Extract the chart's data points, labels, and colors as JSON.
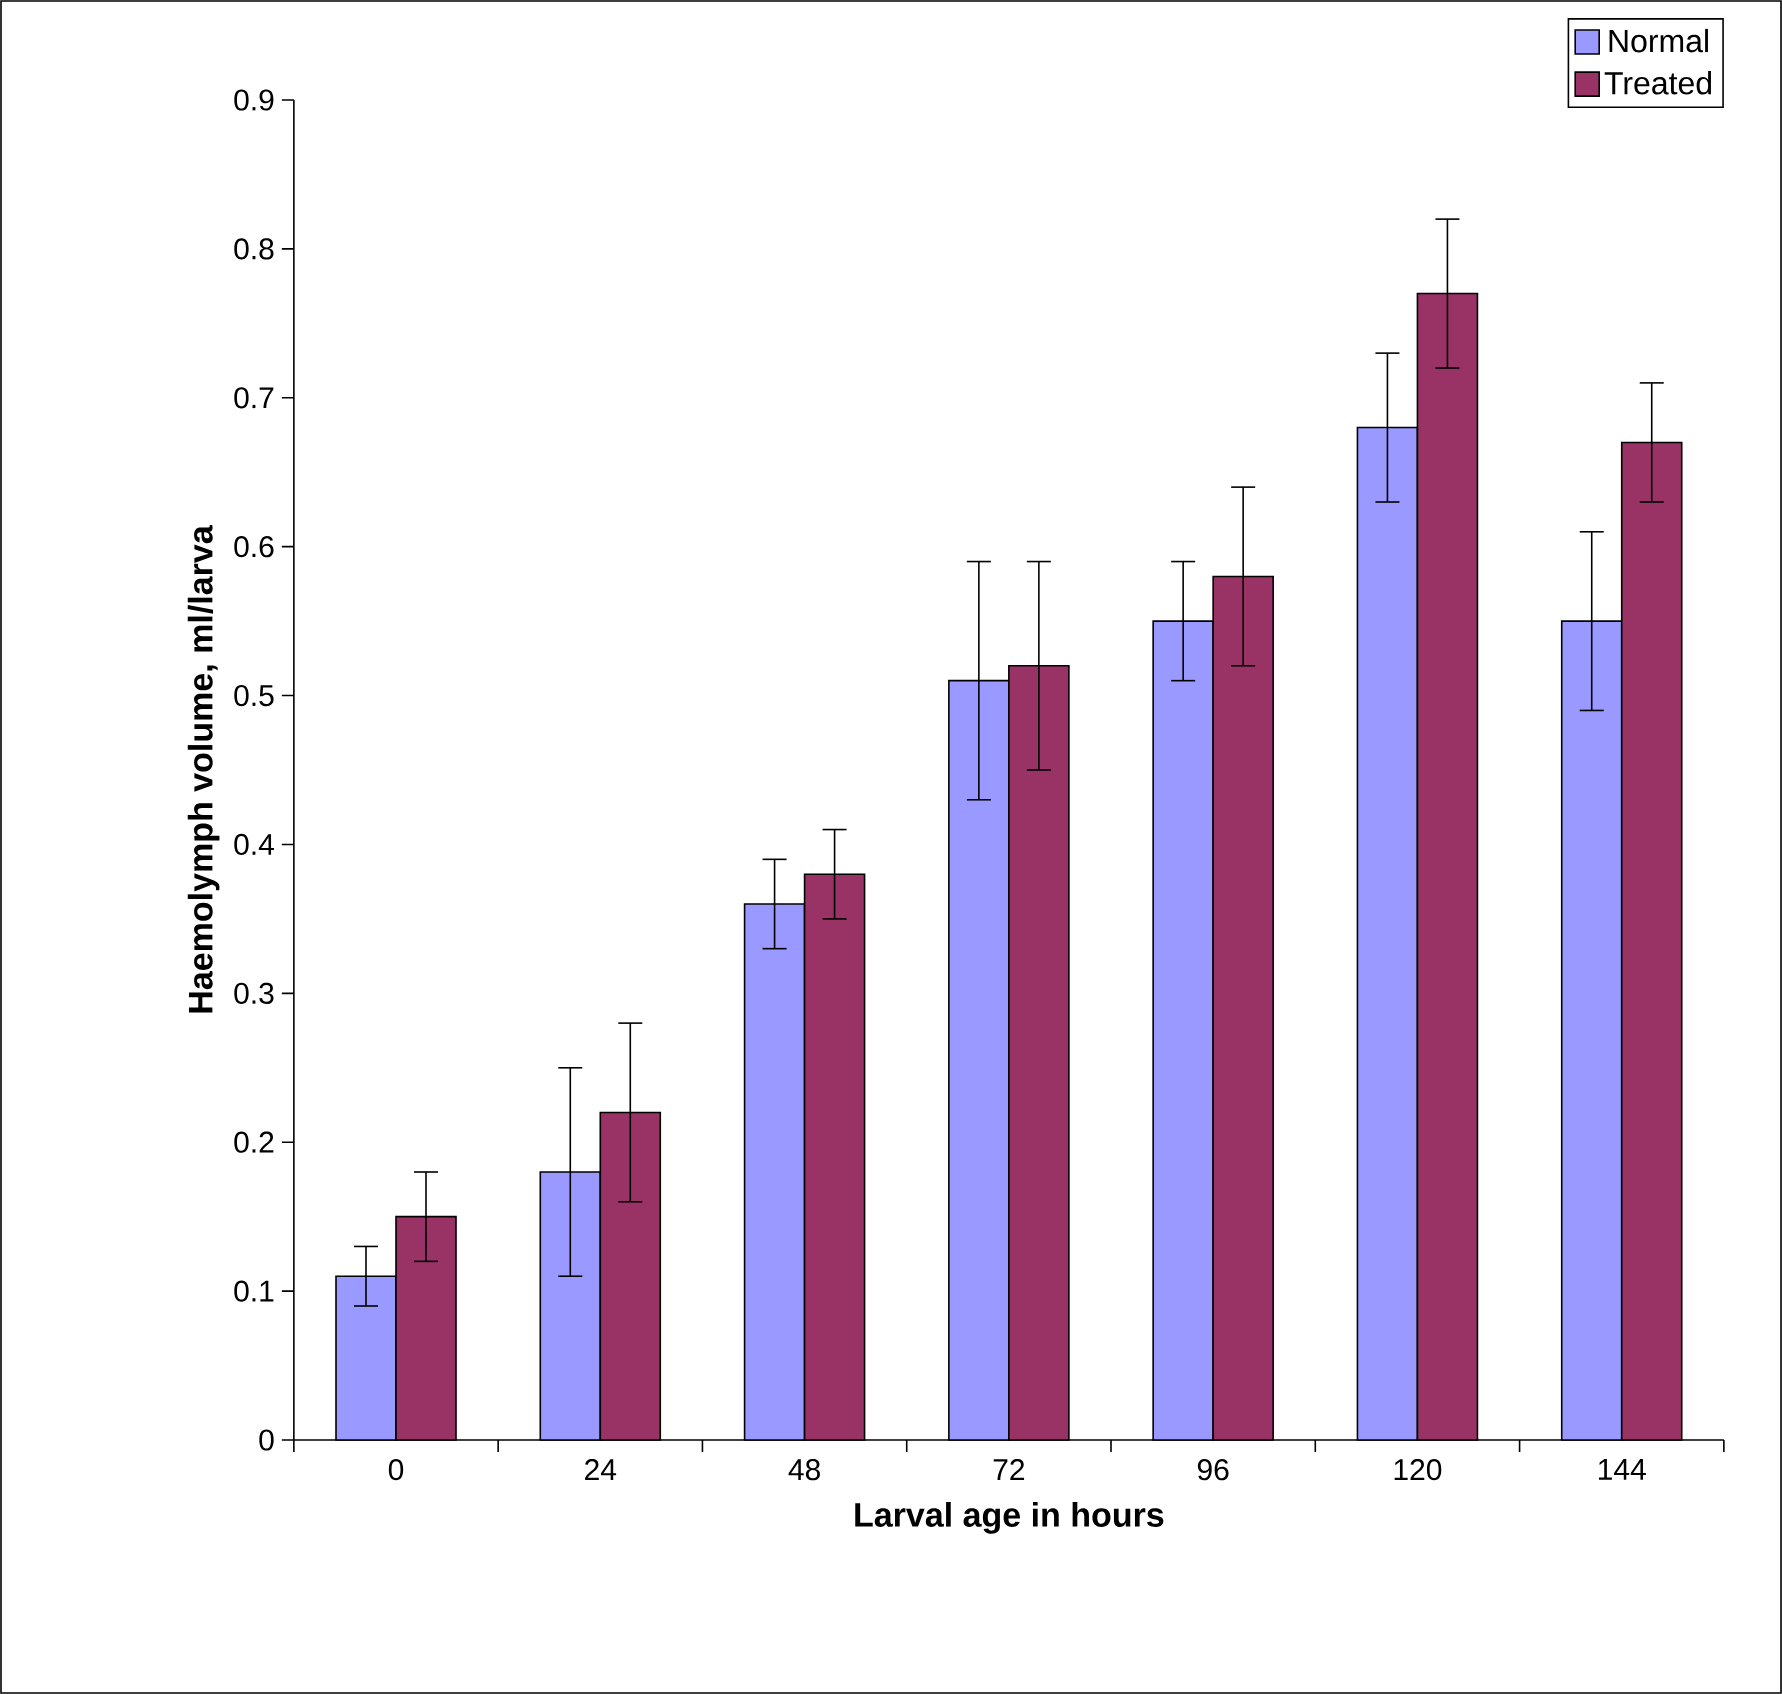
{
  "chart_data": {
    "type": "bar",
    "xlabel": "Larval age in hours",
    "ylabel": "Haemolymph volume, ml/larva",
    "categories": [
      "0",
      "24",
      "48",
      "72",
      "96",
      "120",
      "144"
    ],
    "series": [
      {
        "name": "Normal",
        "color": "#9999ff",
        "values": [
          0.11,
          0.18,
          0.36,
          0.51,
          0.55,
          0.68,
          0.55
        ],
        "errors": [
          0.02,
          0.07,
          0.03,
          0.08,
          0.04,
          0.05,
          0.06
        ]
      },
      {
        "name": "Treated",
        "color": "#993366",
        "values": [
          0.15,
          0.22,
          0.38,
          0.52,
          0.58,
          0.77,
          0.67
        ],
        "errors": [
          0.03,
          0.06,
          0.03,
          0.07,
          0.06,
          0.05,
          0.04
        ]
      }
    ],
    "ylim": [
      0,
      0.9
    ],
    "yticks": [
      0,
      0.1,
      0.2,
      0.3,
      0.4,
      0.5,
      0.6,
      0.7,
      0.8,
      0.9
    ],
    "grid": false,
    "legend": "top right"
  }
}
